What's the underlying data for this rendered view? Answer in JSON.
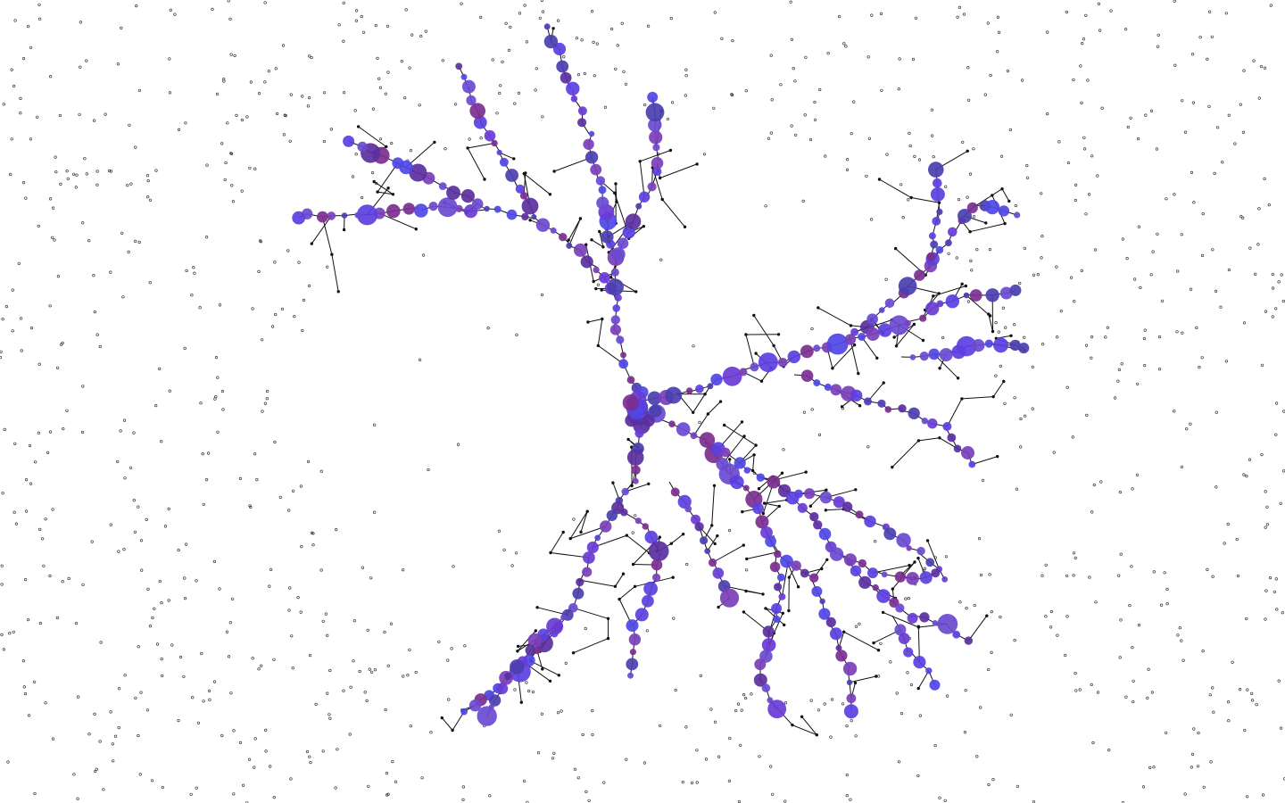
{
  "diagram": {
    "type": "force-directed-tree",
    "background": "#ffffff",
    "edge_color": "#111111",
    "node_colors": [
      "#5b3fe0",
      "#6a3bd6",
      "#4f46e5",
      "#7a3fb8",
      "#5a2fa0",
      "#6b4ad0",
      "#4b3fb0",
      "#7b2f8f"
    ],
    "dust_color": "#222222",
    "legend": "none",
    "labels": "none"
  }
}
